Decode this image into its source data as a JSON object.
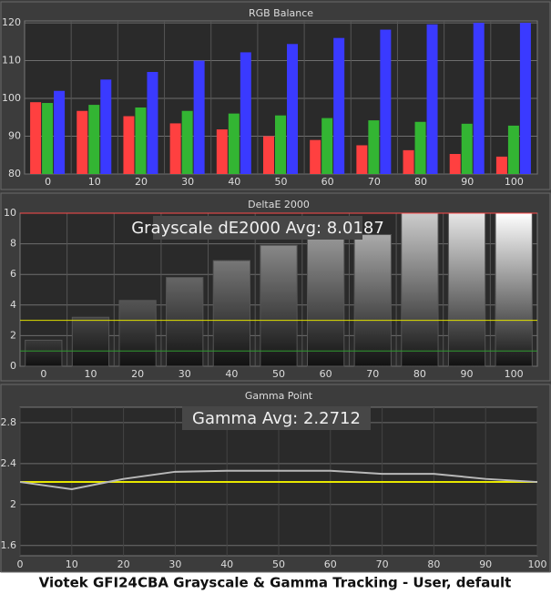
{
  "chart_data": [
    {
      "type": "bar",
      "title": "RGB Balance",
      "categories": [
        "0",
        "10",
        "20",
        "30",
        "40",
        "50",
        "60",
        "70",
        "80",
        "90",
        "100"
      ],
      "series": [
        {
          "color": "#ff4040",
          "values": [
            99,
            96.7,
            95.3,
            93.4,
            91.8,
            90,
            89,
            87.6,
            86.3,
            85.3,
            84.6
          ]
        },
        {
          "color": "#33b533",
          "values": [
            98.8,
            98.3,
            97.6,
            96.7,
            96,
            95.5,
            94.8,
            94.2,
            93.8,
            93.3,
            92.8
          ]
        },
        {
          "color": "#3a3aff",
          "values": [
            102,
            105,
            107,
            110,
            112.2,
            114.4,
            116,
            118.2,
            119.6,
            120,
            120
          ]
        }
      ],
      "ylim": [
        80,
        120.5
      ],
      "yticks": [
        80,
        90,
        100,
        110,
        120
      ],
      "grid": true
    },
    {
      "type": "bar",
      "title": "DeltaE 2000",
      "categories": [
        "0",
        "10",
        "20",
        "30",
        "40",
        "50",
        "60",
        "70",
        "80",
        "90",
        "100"
      ],
      "values": [
        1.7,
        3.2,
        4.3,
        5.8,
        6.9,
        7.9,
        8.6,
        8.6,
        10,
        10,
        10
      ],
      "colors": [
        "#3a3a3a",
        "#454545",
        "#555555",
        "#666666",
        "#777777",
        "#888888",
        "#999999",
        "#aaaaaa",
        "#cccccc",
        "#e6e6e6",
        "#ffffff"
      ],
      "ylim": [
        0,
        10
      ],
      "yticks": [
        0,
        2,
        4,
        6,
        8,
        10
      ],
      "grid": true,
      "annotation": "Grayscale dE2000 Avg: 8.0187",
      "reference_lines": [
        {
          "value": 10,
          "color": "#ff4a4a"
        },
        {
          "value": 3,
          "color": "#e0e000"
        },
        {
          "value": 1,
          "color": "#2f9a2f"
        }
      ]
    },
    {
      "type": "line",
      "title": "Gamma Point",
      "x": [
        0,
        10,
        20,
        30,
        40,
        50,
        60,
        70,
        80,
        90,
        100
      ],
      "values": [
        2.22,
        2.15,
        2.25,
        2.32,
        2.33,
        2.33,
        2.33,
        2.3,
        2.3,
        2.25,
        2.22
      ],
      "color": "#b8b8b8",
      "xlim": [
        0,
        100
      ],
      "xticks": [
        0,
        10,
        20,
        30,
        40,
        50,
        60,
        70,
        80,
        90,
        100
      ],
      "ylim": [
        1.5,
        2.95
      ],
      "yticks": [
        1.6,
        2,
        2.4,
        2.8
      ],
      "grid": true,
      "annotation": "Gamma Avg: 2.2712",
      "reference_lines": [
        {
          "value": 2.22,
          "color": "#e8e800"
        }
      ]
    }
  ],
  "caption": "Viotek GFI24CBA Grayscale & Gamma Tracking - User, default"
}
